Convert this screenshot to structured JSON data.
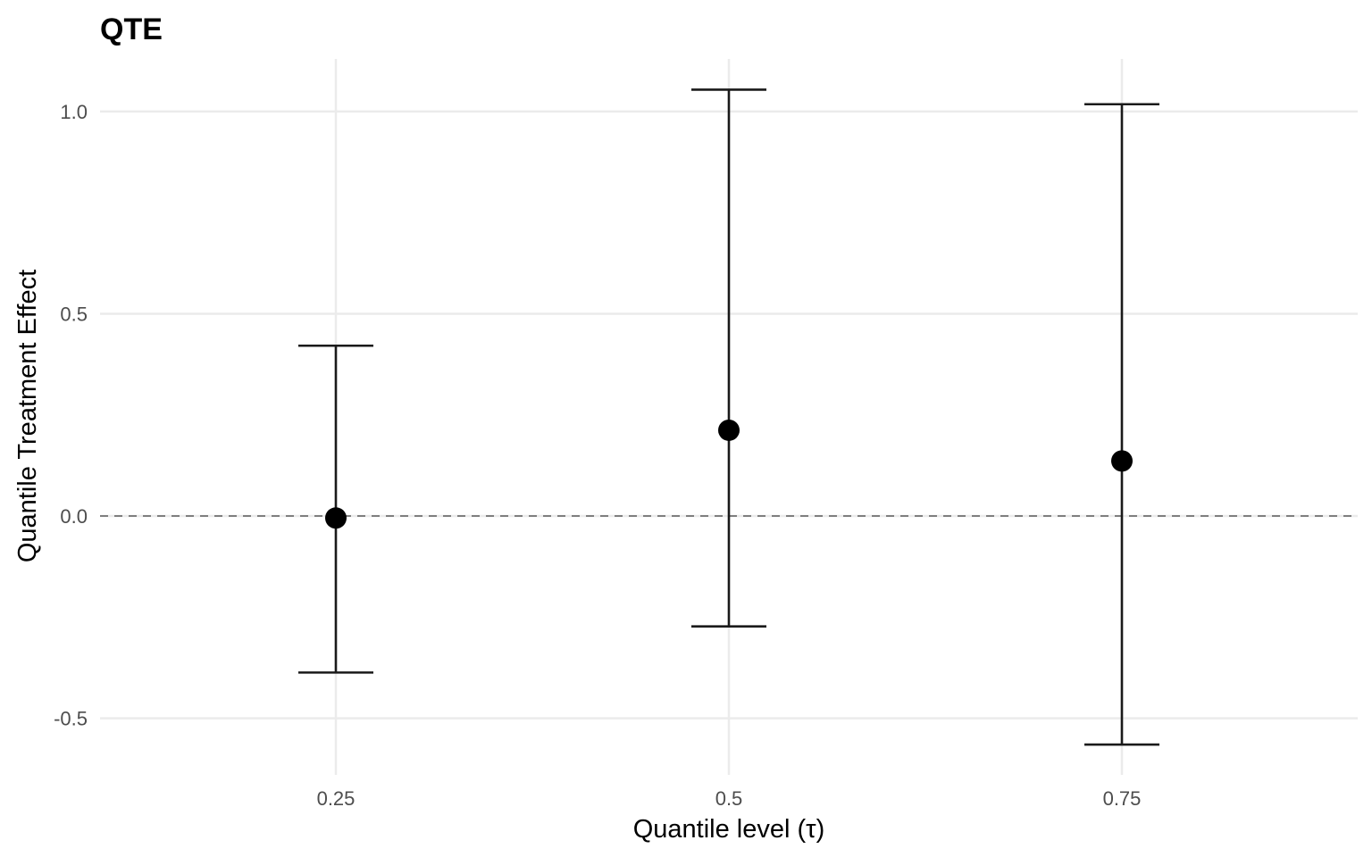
{
  "chart_data": {
    "type": "scatter",
    "title": "QTE",
    "xlabel": "Quantile level (τ)",
    "ylabel": "Quantile Treatment Effect",
    "categories": [
      "0.25",
      "0.5",
      "0.75"
    ],
    "x_ticks": [
      "0.25",
      "0.5",
      "0.75"
    ],
    "y_ticks": [
      "-0.5",
      "0.0",
      "0.5",
      "1.0"
    ],
    "y_tick_values": [
      -0.5,
      0.0,
      0.5,
      1.0
    ],
    "ylim": [
      -0.64,
      1.13
    ],
    "reference_line": {
      "y": 0,
      "style": "dashed",
      "color": "#7f7f7f"
    },
    "series": [
      {
        "points": [
          {
            "x": "0.25",
            "estimate": -0.005,
            "lower": -0.387,
            "upper": 0.421
          },
          {
            "x": "0.5",
            "estimate": 0.212,
            "lower": -0.273,
            "upper": 1.054
          },
          {
            "x": "0.75",
            "estimate": 0.136,
            "lower": -0.565,
            "upper": 1.018
          }
        ]
      }
    ],
    "grid": true,
    "legend": "none",
    "colors": {
      "point": "#000000",
      "errorbar": "#1a1a1a",
      "grid": "#ebebeb",
      "reference": "#7f7f7f",
      "tick_text": "#4d4d4d"
    }
  }
}
